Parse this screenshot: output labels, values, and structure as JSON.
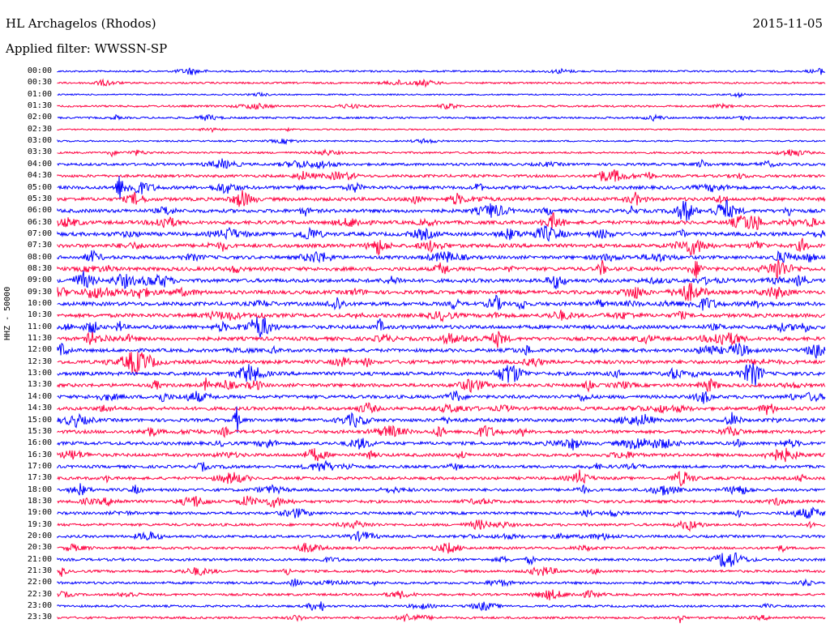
{
  "header": {
    "station": "HL Archagelos (Rhodos)",
    "date": "2015-11-05",
    "filter": "Applied filter: WWSSN-SP"
  },
  "chart_data": {
    "type": "line",
    "title": "HL Archagelos (Rhodos)",
    "ylabel": "HHZ - 50000",
    "colors": {
      "even": "#0000ff",
      "odd": "#ff0040"
    },
    "rows": [
      {
        "time": "00:00",
        "activity": 0.3
      },
      {
        "time": "00:30",
        "activity": 0.3
      },
      {
        "time": "01:00",
        "activity": 0.15
      },
      {
        "time": "01:30",
        "activity": 0.35
      },
      {
        "time": "02:00",
        "activity": 0.35
      },
      {
        "time": "02:30",
        "activity": 0.15
      },
      {
        "time": "03:00",
        "activity": 0.2
      },
      {
        "time": "03:30",
        "activity": 0.35
      },
      {
        "time": "04:00",
        "activity": 0.6
      },
      {
        "time": "04:30",
        "activity": 0.65
      },
      {
        "time": "05:00",
        "activity": 0.85
      },
      {
        "time": "05:30",
        "activity": 0.9
      },
      {
        "time": "06:00",
        "activity": 0.95
      },
      {
        "time": "06:30",
        "activity": 0.95
      },
      {
        "time": "07:00",
        "activity": 1.0
      },
      {
        "time": "07:30",
        "activity": 1.0
      },
      {
        "time": "08:00",
        "activity": 0.9
      },
      {
        "time": "08:30",
        "activity": 1.0
      },
      {
        "time": "09:00",
        "activity": 1.0
      },
      {
        "time": "09:30",
        "activity": 1.0
      },
      {
        "time": "10:00",
        "activity": 1.0
      },
      {
        "time": "10:30",
        "activity": 1.0
      },
      {
        "time": "11:00",
        "activity": 1.0
      },
      {
        "time": "11:30",
        "activity": 1.0
      },
      {
        "time": "12:00",
        "activity": 0.9
      },
      {
        "time": "12:30",
        "activity": 1.0
      },
      {
        "time": "13:00",
        "activity": 0.95
      },
      {
        "time": "13:30",
        "activity": 0.9
      },
      {
        "time": "14:00",
        "activity": 0.9
      },
      {
        "time": "14:30",
        "activity": 0.9
      },
      {
        "time": "15:00",
        "activity": 0.85
      },
      {
        "time": "15:30",
        "activity": 0.85
      },
      {
        "time": "16:00",
        "activity": 0.85
      },
      {
        "time": "16:30",
        "activity": 0.8
      },
      {
        "time": "17:00",
        "activity": 0.7
      },
      {
        "time": "17:30",
        "activity": 0.7
      },
      {
        "time": "18:00",
        "activity": 0.7
      },
      {
        "time": "18:30",
        "activity": 0.7
      },
      {
        "time": "19:00",
        "activity": 0.65
      },
      {
        "time": "19:30",
        "activity": 0.6
      },
      {
        "time": "20:00",
        "activity": 0.6
      },
      {
        "time": "20:30",
        "activity": 0.55
      },
      {
        "time": "21:00",
        "activity": 0.6
      },
      {
        "time": "21:30",
        "activity": 0.55
      },
      {
        "time": "22:00",
        "activity": 0.55
      },
      {
        "time": "22:30",
        "activity": 0.5
      },
      {
        "time": "23:00",
        "activity": 0.45
      },
      {
        "time": "23:30",
        "activity": 0.45
      }
    ]
  }
}
